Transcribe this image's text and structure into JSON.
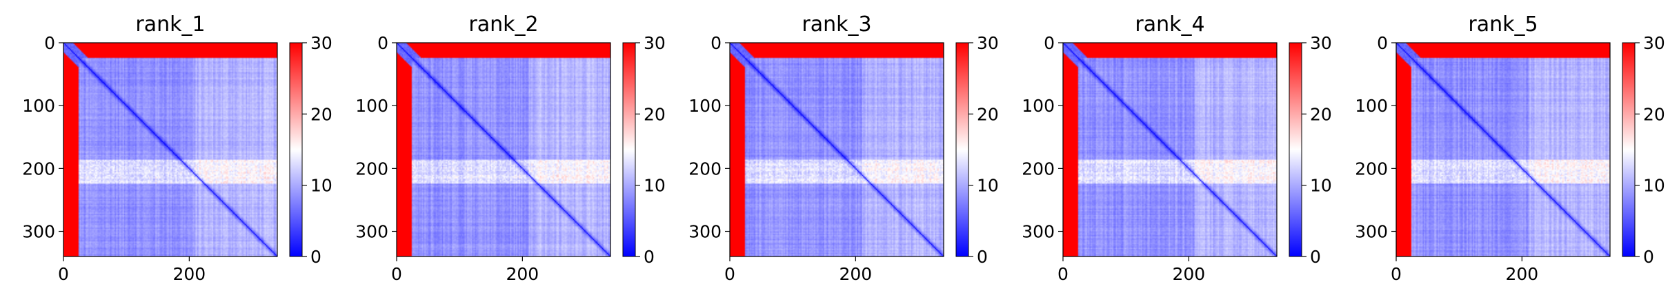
{
  "chart_data": [
    {
      "type": "heatmap",
      "title": "rank_1",
      "matrix_size": 340,
      "xticks": [
        0,
        200
      ],
      "yticks": [
        0,
        100,
        200,
        300
      ],
      "xlim": [
        0,
        340
      ],
      "ylim": [
        340,
        0
      ],
      "colorbar": {
        "min": 0,
        "max": 30,
        "ticks": [
          0,
          10,
          20,
          30
        ],
        "colormap": "bwr",
        "colors": [
          "#0000ff",
          "#ffffff",
          "#ff0000"
        ]
      },
      "features": {
        "high_value_rows": [
          0,
          25
        ],
        "high_value_cols": [
          0,
          25
        ],
        "low_diagonal": true,
        "light_band_rows": [
          185,
          225
        ],
        "light_region_cols": [
          210,
          340
        ]
      }
    },
    {
      "type": "heatmap",
      "title": "rank_2",
      "matrix_size": 340,
      "xticks": [
        0,
        200
      ],
      "yticks": [
        0,
        100,
        200,
        300
      ],
      "xlim": [
        0,
        340
      ],
      "ylim": [
        340,
        0
      ],
      "colorbar": {
        "min": 0,
        "max": 30,
        "ticks": [
          0,
          10,
          20,
          30
        ],
        "colormap": "bwr",
        "colors": [
          "#0000ff",
          "#ffffff",
          "#ff0000"
        ]
      },
      "features": {
        "high_value_rows": [
          0,
          25
        ],
        "high_value_cols": [
          0,
          25
        ],
        "low_diagonal": true,
        "light_band_rows": [
          185,
          225
        ],
        "light_region_cols": [
          210,
          340
        ]
      }
    },
    {
      "type": "heatmap",
      "title": "rank_3",
      "matrix_size": 340,
      "xticks": [
        0,
        200
      ],
      "yticks": [
        0,
        100,
        200,
        300
      ],
      "xlim": [
        0,
        340
      ],
      "ylim": [
        340,
        0
      ],
      "colorbar": {
        "min": 0,
        "max": 30,
        "ticks": [
          0,
          10,
          20,
          30
        ],
        "colormap": "bwr",
        "colors": [
          "#0000ff",
          "#ffffff",
          "#ff0000"
        ]
      },
      "features": {
        "high_value_rows": [
          0,
          25
        ],
        "high_value_cols": [
          0,
          25
        ],
        "low_diagonal": true,
        "light_band_rows": [
          185,
          225
        ],
        "light_region_cols": [
          210,
          340
        ]
      }
    },
    {
      "type": "heatmap",
      "title": "rank_4",
      "matrix_size": 340,
      "xticks": [
        0,
        200
      ],
      "yticks": [
        0,
        100,
        200,
        300
      ],
      "xlim": [
        0,
        340
      ],
      "ylim": [
        340,
        0
      ],
      "colorbar": {
        "min": 0,
        "max": 30,
        "ticks": [
          0,
          10,
          20,
          30
        ],
        "colormap": "bwr",
        "colors": [
          "#0000ff",
          "#ffffff",
          "#ff0000"
        ]
      },
      "features": {
        "high_value_rows": [
          0,
          25
        ],
        "high_value_cols": [
          0,
          25
        ],
        "low_diagonal": true,
        "light_band_rows": [
          185,
          225
        ],
        "light_region_cols": [
          210,
          340
        ]
      }
    },
    {
      "type": "heatmap",
      "title": "rank_5",
      "matrix_size": 340,
      "xticks": [
        0,
        200
      ],
      "yticks": [
        0,
        100,
        200,
        300
      ],
      "xlim": [
        0,
        340
      ],
      "ylim": [
        340,
        0
      ],
      "colorbar": {
        "min": 0,
        "max": 30,
        "ticks": [
          0,
          10,
          20,
          30
        ],
        "colormap": "bwr",
        "colors": [
          "#0000ff",
          "#ffffff",
          "#ff0000"
        ]
      },
      "features": {
        "high_value_rows": [
          0,
          25
        ],
        "high_value_cols": [
          0,
          25
        ],
        "low_diagonal": true,
        "light_band_rows": [
          185,
          225
        ],
        "light_region_cols": [
          210,
          340
        ]
      }
    }
  ]
}
